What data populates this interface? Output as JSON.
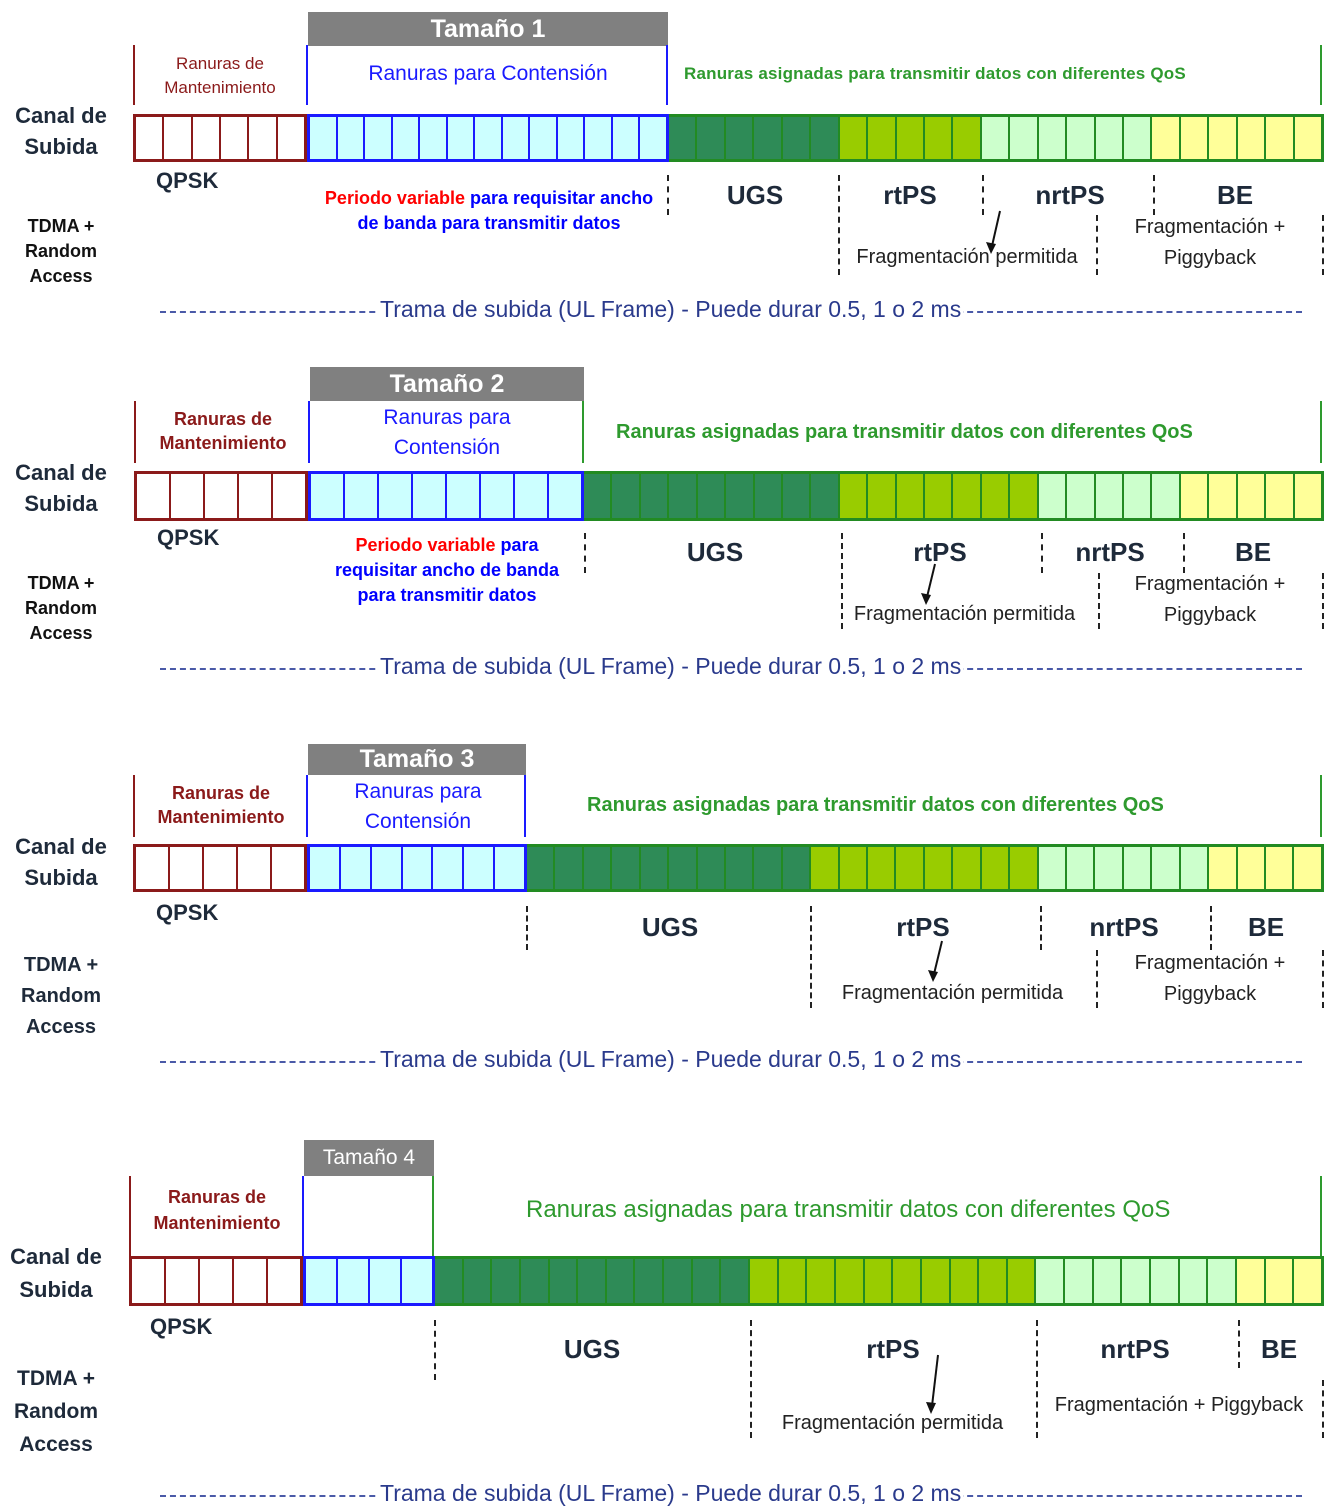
{
  "diagram": {
    "panels": [
      {
        "size_label": "Tamaño 1",
        "maintenance_label": "Ranuras de Mantenimiento",
        "contention_label": "Ranuras para Contensión",
        "qos_label": "Ranuras asignadas para transmitir datos con diferentes QoS",
        "channel_label": "Canal de Subida",
        "modulation_label": "QPSK",
        "access_label": "TDMA + Random Access",
        "period_red": "Periodo variable",
        "period_blue": "para requisitar ancho de banda para transmitir datos",
        "services": [
          "UGS",
          "rtPS",
          "nrtPS",
          "BE"
        ],
        "frag_allowed": "Fragmentación permitida",
        "frag_piggy": "Fragmentación + Piggyback",
        "frame_label": "Trama de subida (UL Frame) - Puede durar 0.5,  1 o 2 ms"
      },
      {
        "size_label": "Tamaño 2",
        "maintenance_label": "Ranuras de Mantenimiento",
        "contention_label": "Ranuras para Contensión",
        "qos_label": "Ranuras asignadas para transmitir datos con diferentes QoS",
        "channel_label": "Canal de Subida",
        "modulation_label": "QPSK",
        "access_label": "TDMA + Random Access",
        "period_red": "Periodo variable",
        "period_blue": "para requisitar ancho de banda para transmitir datos",
        "services": [
          "UGS",
          "rtPS",
          "nrtPS",
          "BE"
        ],
        "frag_allowed": "Fragmentación permitida",
        "frag_piggy": "Fragmentación + Piggyback",
        "frame_label": "Trama de subida (UL Frame) - Puede durar 0.5,  1 o 2 ms"
      },
      {
        "size_label": "Tamaño 3",
        "maintenance_label": "Ranuras de Mantenimiento",
        "contention_label": "Ranuras para Contensión",
        "qos_label": "Ranuras asignadas para transmitir datos con diferentes QoS",
        "channel_label": "Canal de Subida",
        "modulation_label": "QPSK",
        "access_label": "TDMA + Random Access",
        "services": [
          "UGS",
          "rtPS",
          "nrtPS",
          "BE"
        ],
        "frag_allowed": "Fragmentación permitida",
        "frag_piggy": "Fragmentación + Piggyback",
        "frame_label": "Trama de subida (UL Frame) - Puede durar 0.5,  1 o 2 ms"
      },
      {
        "size_label": "Tamaño 4",
        "maintenance_label": "Ranuras de Mantenimiento",
        "qos_label": "Ranuras asignadas para transmitir datos con diferentes QoS",
        "channel_label": "Canal de Subida",
        "modulation_label": "QPSK",
        "access_label": "TDMA + Random Access",
        "services": [
          "UGS",
          "rtPS",
          "nrtPS",
          "BE"
        ],
        "frag_allowed": "Fragmentación permitida",
        "frag_piggy": "Fragmentación + Piggyback",
        "frame_label": "Trama de subida (UL Frame) - Puede durar 0.5,  1 o 2 ms"
      }
    ],
    "colors": {
      "maintenance": "#8b1a1a",
      "contention": "#1a1aff",
      "contention_fill": "#ccffff",
      "ugs": "#2e8b57",
      "rtps": "#99cc00",
      "nrtps": "#ccffcc",
      "be": "#ffff99",
      "slot_border": "#228b22",
      "qos_text": "#2e9a2e"
    }
  }
}
